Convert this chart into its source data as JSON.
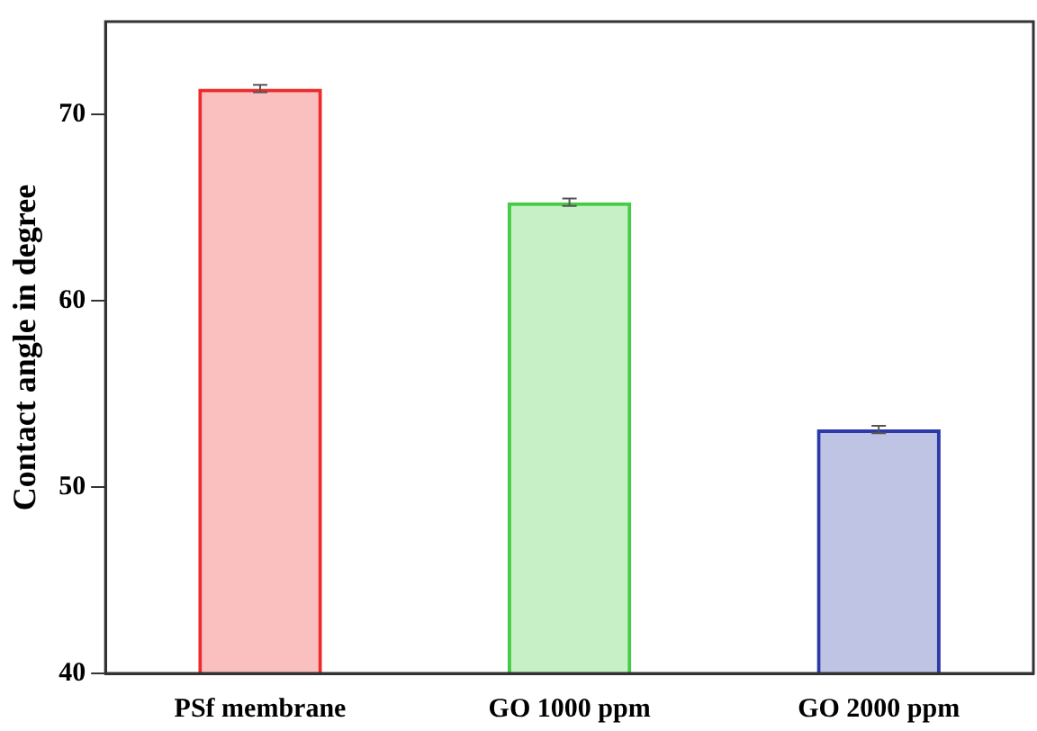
{
  "chart_data": {
    "type": "bar",
    "ylabel": "Contact angle in degree",
    "categories": [
      "PSf membrane",
      "GO 1000 ppm",
      "GO 2000 ppm"
    ],
    "values": [
      71.4,
      65.3,
      53.1
    ],
    "errors": [
      0.2,
      0.2,
      0.2
    ],
    "colors": [
      "#ee2a2a",
      "#44cc44",
      "#2b3aa8"
    ],
    "ylim": [
      40,
      75
    ],
    "yticks": [
      40,
      50,
      60,
      70
    ],
    "grid": false,
    "legend": false
  }
}
